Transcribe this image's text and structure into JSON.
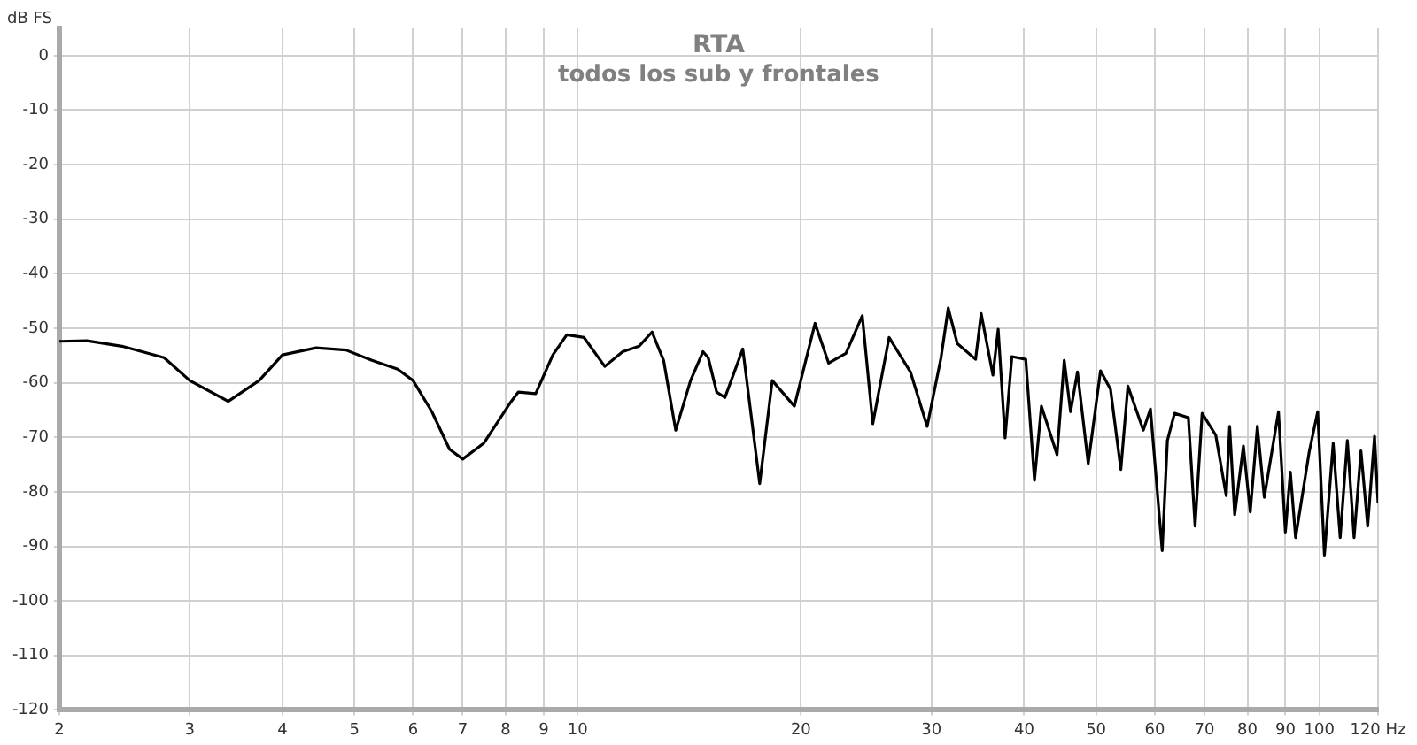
{
  "chart_data": {
    "type": "line",
    "title": "RTA",
    "subtitle": "todos los sub y frontales",
    "ylabel": "dB FS",
    "x": [
      2,
      2.18,
      2.43,
      2.77,
      3,
      3.38,
      3.72,
      4,
      4.44,
      4.87,
      5.28,
      5.72,
      6,
      6.36,
      6.72,
      7,
      7.47,
      8.1,
      8.32,
      8.78,
      9.26,
      9.67,
      10.2,
      10.88,
      11.5,
      12.1,
      12.6,
      13.06,
      13.56,
      14.2,
      14.76,
      15.0,
      15.4,
      15.8,
      16.7,
      17.6,
      18.3,
      19.6,
      20.9,
      21.8,
      23.0,
      24.2,
      25.0,
      26.3,
      28.1,
      29.6,
      30.9,
      31.6,
      32.5,
      34.4,
      35.0,
      36.3,
      36.9,
      37.7,
      38.5,
      40.2,
      41.3,
      42.2,
      44.3,
      45.3,
      46.2,
      47.2,
      48.8,
      50.7,
      52.3,
      54.0,
      55.2,
      57.9,
      59.2,
      61.4,
      62.4,
      63.8,
      66.6,
      68.0,
      69.5,
      72.5,
      74.9,
      75.7,
      76.9,
      79.0,
      80.7,
      82.5,
      84.3,
      88.1,
      90.0,
      91.4,
      92.9,
      96.9,
      99.5,
      101.6,
      104.4,
      106.7,
      109.1,
      111.4,
      113.8,
      116.2,
      118.7,
      120
    ],
    "series": [
      {
        "color": "#000000",
        "values": [
          -52.4,
          -52.3,
          -53.3,
          -55.4,
          -59.6,
          -63.4,
          -59.6,
          -54.9,
          -53.6,
          -54.0,
          -55.9,
          -57.5,
          -59.6,
          -65.3,
          -72.2,
          -74.0,
          -71.1,
          -63.8,
          -61.7,
          -62.0,
          -54.9,
          -51.2,
          -51.7,
          -57.0,
          -54.3,
          -53.3,
          -50.7,
          -55.9,
          -68.7,
          -59.6,
          -54.3,
          -55.4,
          -61.7,
          -62.7,
          -53.8,
          -78.5,
          -59.6,
          -64.3,
          -49.1,
          -56.4,
          -54.6,
          -47.7,
          -67.5,
          -51.7,
          -58.0,
          -68.0,
          -55.4,
          -46.3,
          -52.8,
          -55.7,
          -47.3,
          -58.6,
          -50.2,
          -70.1,
          -55.2,
          -55.7,
          -77.9,
          -64.3,
          -73.2,
          -55.9,
          -65.3,
          -58.0,
          -74.8,
          -57.8,
          -61.2,
          -75.9,
          -60.6,
          -68.7,
          -64.8,
          -90.8,
          -70.6,
          -65.6,
          -66.4,
          -86.3,
          -65.6,
          -69.6,
          -80.7,
          -68.0,
          -84.2,
          -71.6,
          -83.7,
          -68.0,
          -81.0,
          -65.3,
          -87.4,
          -76.4,
          -88.4,
          -72.7,
          -65.3,
          -91.6,
          -71.1,
          -88.4,
          -70.6,
          -88.4,
          -72.5,
          -86.3,
          -69.8,
          -82.0
        ]
      }
    ],
    "log": "x",
    "xlim": [
      2,
      120
    ],
    "xticks": [
      2,
      3,
      4,
      5,
      6,
      7,
      8,
      9,
      10,
      20,
      30,
      40,
      50,
      60,
      70,
      80,
      90,
      100,
      {
        "value": 120,
        "label": "120 Hz"
      }
    ],
    "ylim": [
      -120,
      5
    ],
    "yticks": [
      0,
      -10,
      -20,
      -30,
      -40,
      -50,
      -60,
      -70,
      -80,
      -90,
      -100,
      -110,
      -120
    ],
    "grid": true,
    "legend": false,
    "marker": "none",
    "line_style": "solid"
  }
}
